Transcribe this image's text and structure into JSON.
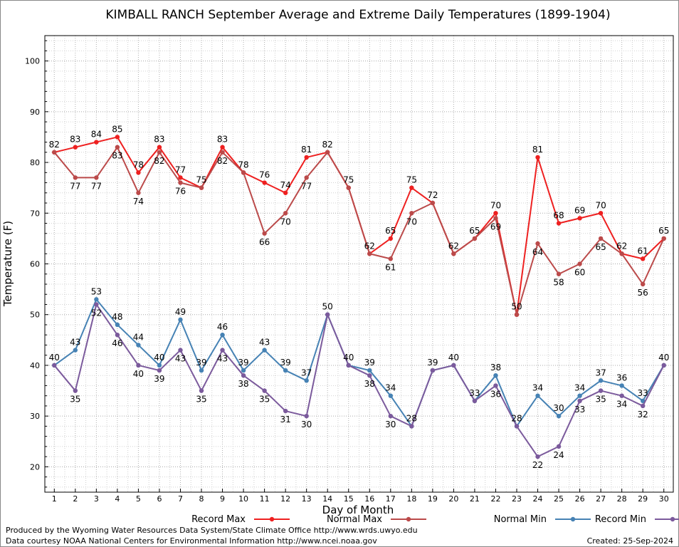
{
  "chart_data": {
    "type": "line",
    "title": "KIMBALL RANCH September Average and Extreme Daily Temperatures (1899-1904)",
    "xlabel": "Day of Month",
    "ylabel": "Temperature (F)",
    "x": [
      1,
      2,
      3,
      4,
      5,
      6,
      7,
      8,
      9,
      10,
      11,
      12,
      13,
      14,
      15,
      16,
      17,
      18,
      19,
      20,
      21,
      22,
      23,
      24,
      25,
      26,
      27,
      28,
      29,
      30
    ],
    "xlim": [
      0.55,
      30.45
    ],
    "ylim": [
      15,
      105
    ],
    "yticks": [
      20,
      30,
      40,
      50,
      60,
      70,
      80,
      90,
      100
    ],
    "grid": true,
    "legend_position": "bottom",
    "series": [
      {
        "name": "Record Max",
        "color": "#ee2020",
        "values": [
          82,
          83,
          84,
          85,
          78,
          83,
          77,
          75,
          83,
          78,
          76,
          74,
          81,
          82,
          75,
          62,
          65,
          75,
          72,
          62,
          65,
          70,
          50,
          81,
          68,
          69,
          70,
          62,
          61,
          65
        ]
      },
      {
        "name": "Normal Max",
        "color": "#bb4a4a",
        "values": [
          82,
          77,
          77,
          83,
          74,
          82,
          76,
          75,
          82,
          78,
          66,
          70,
          77,
          82,
          75,
          62,
          61,
          70,
          72,
          62,
          65,
          69,
          50,
          64,
          58,
          60,
          65,
          62,
          56,
          65
        ]
      },
      {
        "name": "Normal Min",
        "color": "#4682b4",
        "values": [
          40,
          43,
          53,
          48,
          44,
          40,
          49,
          39,
          46,
          39,
          43,
          39,
          37,
          50,
          40,
          39,
          34,
          28,
          39,
          40,
          33,
          38,
          28,
          34,
          30,
          34,
          37,
          36,
          33,
          40
        ]
      },
      {
        "name": "Record Min",
        "color": "#7b5a9c",
        "values": [
          40,
          35,
          52,
          46,
          40,
          39,
          43,
          35,
          43,
          38,
          35,
          31,
          30,
          50,
          40,
          38,
          30,
          28,
          39,
          40,
          33,
          36,
          28,
          22,
          24,
          33,
          35,
          34,
          32,
          40
        ]
      }
    ]
  },
  "footer": {
    "produced_by": "Produced by the Wyoming Water Resources Data System/State Climate Office http://www.wrds.uwyo.edu",
    "courtesy": "Data courtesy NOAA National Centers for Environmental Information http://www.ncei.noaa.gov",
    "created": "Created:  25-Sep-2024"
  }
}
